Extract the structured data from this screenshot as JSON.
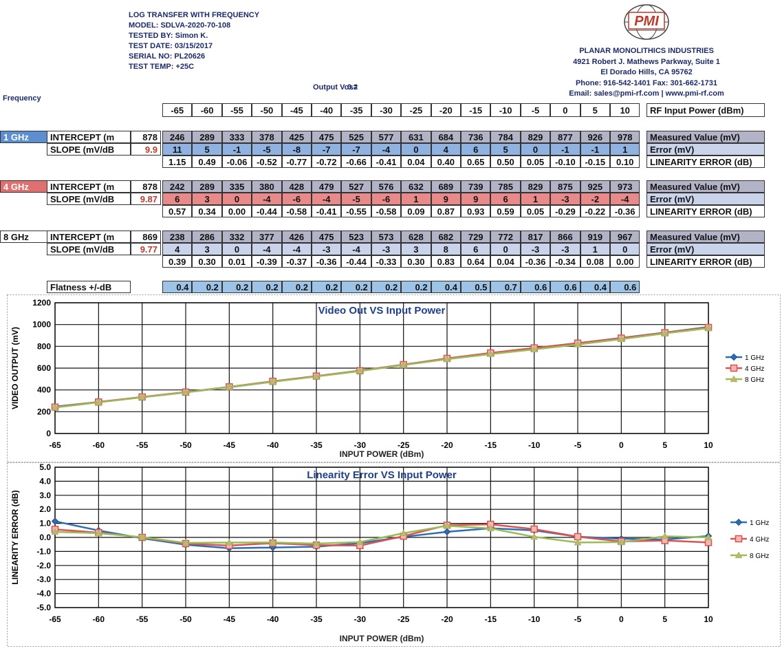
{
  "header": {
    "lines": [
      "LOG TRANSFER WITH FREQUENCY",
      "MODEL: SDLVA-2020-70-108",
      "TESTED BY: Simon K.",
      "TEST DATE: 03/15/2017",
      "SERIAL NO: PL20626",
      "TEST TEMP: +25C"
    ]
  },
  "company": {
    "logo": "PMI",
    "lines": [
      "PLANAR MONOLITHICS INDUSTRIES",
      "4921 Robert J. Mathews Parkway, Suite 1",
      "El Dorado Hills, CA 95762",
      "Phone: 916-542-1401 Fax: 301-662-1731",
      "Email: sales@pmi-rf.com | www.pmi-rf.com"
    ]
  },
  "output_vos": {
    "label": "Output Vos=",
    "value": "0.2"
  },
  "frequency_label": "Frequency",
  "power_row": {
    "values": [
      "-65",
      "-60",
      "-55",
      "-50",
      "-45",
      "-40",
      "-35",
      "-30",
      "-25",
      "-20",
      "-15",
      "-10",
      "-5",
      "0",
      "5",
      "10"
    ],
    "label": "RF Input Power (dBm)"
  },
  "row_labels": {
    "measured": "Measured Value (mV)",
    "error": "Error (mV)",
    "linearity": "LINEARITY ERROR (dB)"
  },
  "blocks": [
    {
      "frequency": "1 GHz",
      "intercept_label": "INTERCEPT (m",
      "intercept": "878",
      "slope_label": "SLOPE (mV/dB",
      "slope": "9.9",
      "measured": [
        "246",
        "289",
        "333",
        "378",
        "425",
        "475",
        "525",
        "577",
        "631",
        "684",
        "736",
        "784",
        "829",
        "877",
        "926",
        "978"
      ],
      "error": [
        "11",
        "5",
        "-1",
        "-5",
        "-8",
        "-7",
        "-7",
        "-4",
        "0",
        "4",
        "6",
        "5",
        "0",
        "-1",
        "-1",
        "1"
      ],
      "linearity": [
        "1.15",
        "0.49",
        "-0.06",
        "-0.52",
        "-0.77",
        "-0.72",
        "-0.66",
        "-0.41",
        "0.04",
        "0.40",
        "0.65",
        "0.50",
        "0.05",
        "-0.10",
        "-0.15",
        "0.10"
      ]
    },
    {
      "frequency": "4 GHz",
      "intercept_label": "INTERCEPT (m",
      "intercept": "878",
      "slope_label": "SLOPE (mV/dB",
      "slope": "9.87",
      "measured": [
        "242",
        "289",
        "335",
        "380",
        "428",
        "479",
        "527",
        "576",
        "632",
        "689",
        "739",
        "785",
        "829",
        "875",
        "925",
        "973"
      ],
      "error": [
        "6",
        "3",
        "0",
        "-4",
        "-6",
        "-4",
        "-5",
        "-6",
        "1",
        "9",
        "9",
        "6",
        "1",
        "-3",
        "-2",
        "-4"
      ],
      "linearity": [
        "0.57",
        "0.34",
        "0.00",
        "-0.44",
        "-0.58",
        "-0.41",
        "-0.55",
        "-0.58",
        "0.09",
        "0.87",
        "0.93",
        "0.59",
        "0.05",
        "-0.29",
        "-0.22",
        "-0.36"
      ]
    },
    {
      "frequency": "8 GHz",
      "intercept_label": "INTERCEPT (m",
      "intercept": "869",
      "slope_label": "SLOPE (mV/dB",
      "slope": "9.77",
      "measured": [
        "238",
        "286",
        "332",
        "377",
        "426",
        "475",
        "523",
        "573",
        "628",
        "682",
        "729",
        "772",
        "817",
        "866",
        "919",
        "967"
      ],
      "error": [
        "4",
        "3",
        "0",
        "-4",
        "-4",
        "-3",
        "-4",
        "-3",
        "3",
        "8",
        "6",
        "0",
        "-3",
        "-3",
        "1",
        "0"
      ],
      "linearity": [
        "0.39",
        "0.30",
        "0.01",
        "-0.39",
        "-0.37",
        "-0.36",
        "-0.44",
        "-0.33",
        "0.30",
        "0.83",
        "0.64",
        "0.04",
        "-0.36",
        "-0.34",
        "0.08",
        "0.00"
      ]
    }
  ],
  "flatness": {
    "label": "Flatness +/-dB",
    "values": [
      "0.4",
      "0.2",
      "0.2",
      "0.2",
      "0.2",
      "0.2",
      "0.2",
      "0.2",
      "0.2",
      "0.4",
      "0.5",
      "0.7",
      "0.6",
      "0.6",
      "0.4",
      "0.6"
    ]
  },
  "chart_data": [
    {
      "type": "line",
      "title": "Video Out VS Input Power",
      "x_label": "INPUT POWER (dBm)",
      "y_label": "VIDEO OUTPUT (mV)",
      "x": [
        -65,
        -60,
        -55,
        -50,
        -45,
        -40,
        -35,
        -30,
        -25,
        -20,
        -15,
        -10,
        -5,
        0,
        5,
        10
      ],
      "xlim": [
        -65,
        10
      ],
      "xticks": [
        -65,
        -60,
        -55,
        -50,
        -45,
        -40,
        -35,
        -30,
        -25,
        -20,
        -15,
        -10,
        -5,
        0,
        5,
        10
      ],
      "ylim": [
        0,
        1200
      ],
      "yticks": [
        0,
        200,
        400,
        600,
        800,
        1000,
        1200
      ],
      "grid": true,
      "legend": "right",
      "series": [
        {
          "name": "1 GHz",
          "color": "#2e6db4",
          "values": [
            246,
            289,
            333,
            378,
            425,
            475,
            525,
            577,
            631,
            684,
            736,
            784,
            829,
            877,
            926,
            978
          ]
        },
        {
          "name": "4 GHz",
          "color": "#d9534f",
          "values": [
            242,
            289,
            335,
            380,
            428,
            479,
            527,
            576,
            632,
            689,
            739,
            785,
            829,
            875,
            925,
            973
          ]
        },
        {
          "name": "8 GHz",
          "color": "#9bbb59",
          "values": [
            238,
            286,
            332,
            377,
            426,
            475,
            523,
            573,
            628,
            682,
            729,
            772,
            817,
            866,
            919,
            967
          ]
        }
      ]
    },
    {
      "type": "line",
      "title": "Linearity Error VS Input Power",
      "x_label": "INPUT POWER (dBm)",
      "y_label": "LINEARITY ERROR (dB)",
      "x": [
        -65,
        -60,
        -55,
        -50,
        -45,
        -40,
        -35,
        -30,
        -25,
        -20,
        -15,
        -10,
        -5,
        0,
        5,
        10
      ],
      "xlim": [
        -65,
        10
      ],
      "xticks": [
        -65,
        -60,
        -55,
        -50,
        -45,
        -40,
        -35,
        -30,
        -25,
        -20,
        -15,
        -10,
        -5,
        0,
        5,
        10
      ],
      "ylim": [
        -5,
        5
      ],
      "yticks": [
        {
          "value": -5,
          "label": "-5.0"
        },
        {
          "value": -4,
          "label": "-4.0"
        },
        {
          "value": -3,
          "label": "-3.0"
        },
        {
          "value": -2,
          "label": "-2.0"
        },
        {
          "value": -1,
          "label": "-1.0"
        },
        {
          "value": 0,
          "label": "0.0"
        },
        {
          "value": 1,
          "label": "1.0"
        },
        {
          "value": 2,
          "label": "2.0"
        },
        {
          "value": 3,
          "label": "3.0"
        },
        {
          "value": 4,
          "label": "4.0"
        },
        {
          "value": 5,
          "label": "5.0"
        }
      ],
      "grid": true,
      "legend": "right",
      "series": [
        {
          "name": "1 GHz",
          "color": "#2e6db4",
          "values": [
            1.15,
            0.49,
            -0.06,
            -0.52,
            -0.77,
            -0.72,
            -0.66,
            -0.41,
            0.04,
            0.4,
            0.65,
            0.5,
            0.05,
            -0.1,
            -0.15,
            0.1
          ]
        },
        {
          "name": "4 GHz",
          "color": "#d9534f",
          "values": [
            0.57,
            0.34,
            0.0,
            -0.44,
            -0.58,
            -0.41,
            -0.55,
            -0.58,
            0.09,
            0.87,
            0.93,
            0.59,
            0.05,
            -0.29,
            -0.22,
            -0.36
          ]
        },
        {
          "name": "8 GHz",
          "color": "#9bbb59",
          "values": [
            0.39,
            0.3,
            0.01,
            -0.39,
            -0.37,
            -0.36,
            -0.44,
            -0.33,
            0.3,
            0.83,
            0.64,
            0.04,
            -0.36,
            -0.34,
            0.08,
            0.0
          ]
        }
      ]
    }
  ]
}
